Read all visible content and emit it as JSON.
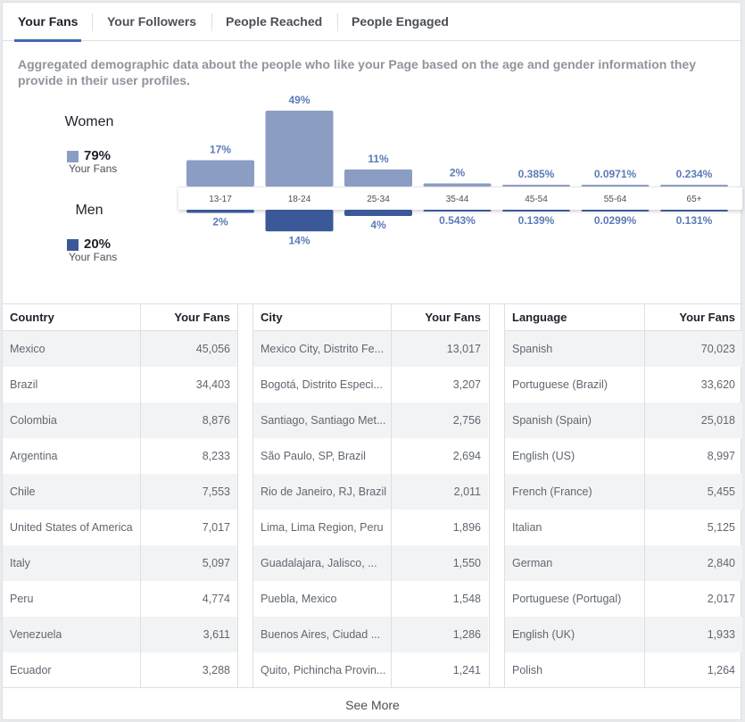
{
  "tabs": [
    {
      "label": "Your Fans",
      "active": true
    },
    {
      "label": "Your Followers",
      "active": false
    },
    {
      "label": "People Reached",
      "active": false
    },
    {
      "label": "People Engaged",
      "active": false
    }
  ],
  "description": "Aggregated demographic data about the people who like your Page based on the age and gender information they provide in their user profiles.",
  "gender": {
    "women": {
      "title": "Women",
      "percent": "79%",
      "sublabel": "Your Fans",
      "color": "#8b9dc3"
    },
    "men": {
      "title": "Men",
      "percent": "20%",
      "sublabel": "Your Fans",
      "color": "#3b5998"
    }
  },
  "chart_data": {
    "type": "bar",
    "categories": [
      "13-17",
      "18-24",
      "25-34",
      "35-44",
      "45-54",
      "55-64",
      "65+"
    ],
    "series": [
      {
        "name": "Women",
        "values": [
          17,
          49,
          11,
          2,
          0.385,
          0.0971,
          0.234
        ],
        "labels": [
          "17%",
          "49%",
          "11%",
          "2%",
          "0.385%",
          "0.0971%",
          "0.234%"
        ],
        "color": "#8b9dc3"
      },
      {
        "name": "Men",
        "values": [
          2,
          14,
          4,
          0.543,
          0.139,
          0.0299,
          0.131
        ],
        "labels": [
          "2%",
          "14%",
          "4%",
          "0.543%",
          "0.139%",
          "0.0299%",
          "0.131%"
        ],
        "color": "#3b5998"
      }
    ],
    "label_color": "#5b7bb7"
  },
  "tables": [
    {
      "col1": "Country",
      "col2": "Your Fans",
      "rows": [
        [
          "Mexico",
          "45,056"
        ],
        [
          "Brazil",
          "34,403"
        ],
        [
          "Colombia",
          "8,876"
        ],
        [
          "Argentina",
          "8,233"
        ],
        [
          "Chile",
          "7,553"
        ],
        [
          "United States of America",
          "7,017"
        ],
        [
          "Italy",
          "5,097"
        ],
        [
          "Peru",
          "4,774"
        ],
        [
          "Venezuela",
          "3,611"
        ],
        [
          "Ecuador",
          "3,288"
        ]
      ]
    },
    {
      "col1": "City",
      "col2": "Your Fans",
      "rows": [
        [
          "Mexico City, Distrito Fe...",
          "13,017"
        ],
        [
          "Bogotá, Distrito Especi...",
          "3,207"
        ],
        [
          "Santiago, Santiago Met...",
          "2,756"
        ],
        [
          "São Paulo, SP, Brazil",
          "2,694"
        ],
        [
          "Rio de Janeiro, RJ, Brazil",
          "2,011"
        ],
        [
          "Lima, Lima Region, Peru",
          "1,896"
        ],
        [
          "Guadalajara, Jalisco, ...",
          "1,550"
        ],
        [
          "Puebla, Mexico",
          "1,548"
        ],
        [
          "Buenos Aires, Ciudad ...",
          "1,286"
        ],
        [
          "Quito, Pichincha Provin...",
          "1,241"
        ]
      ]
    },
    {
      "col1": "Language",
      "col2": "Your Fans",
      "rows": [
        [
          "Spanish",
          "70,023"
        ],
        [
          "Portuguese (Brazil)",
          "33,620"
        ],
        [
          "Spanish (Spain)",
          "25,018"
        ],
        [
          "English (US)",
          "8,997"
        ],
        [
          "French (France)",
          "5,455"
        ],
        [
          "Italian",
          "5,125"
        ],
        [
          "German",
          "2,840"
        ],
        [
          "Portuguese (Portugal)",
          "2,017"
        ],
        [
          "English (UK)",
          "1,933"
        ],
        [
          "Polish",
          "1,264"
        ]
      ]
    }
  ],
  "see_more": "See More"
}
